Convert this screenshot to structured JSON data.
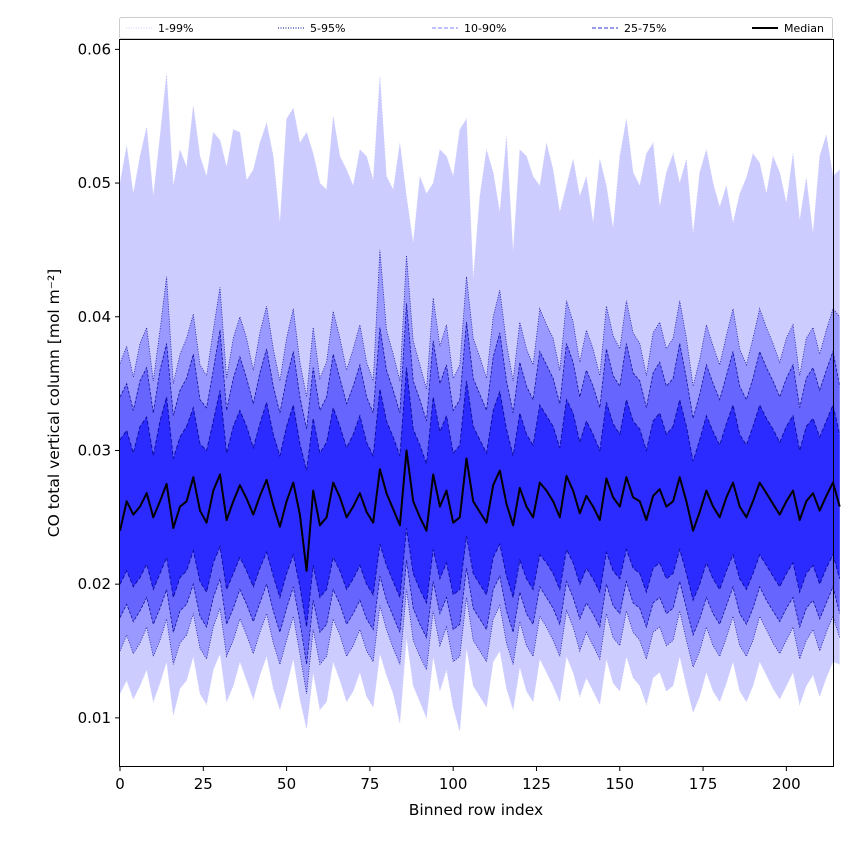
{
  "chart_data": {
    "type": "area",
    "title": "",
    "xlabel": "Binned row index",
    "ylabel": "CO total vertical column [mol m⁻²]",
    "xlim": [
      0,
      214
    ],
    "ylim": [
      0.0064,
      0.0607
    ],
    "x_ticks": [
      0,
      25,
      50,
      75,
      100,
      125,
      150,
      175,
      200
    ],
    "x_tick_labels": [
      "0",
      "25",
      "50",
      "75",
      "100",
      "125",
      "150",
      "175",
      "200"
    ],
    "y_ticks": [
      0.01,
      0.02,
      0.03,
      0.04,
      0.05,
      0.06
    ],
    "y_tick_labels": [
      "0.01",
      "0.02",
      "0.03",
      "0.04",
      "0.05",
      "0.06"
    ],
    "legend": {
      "placement": "top",
      "entries": [
        {
          "label": "1-99%",
          "style": "dotted",
          "color": "#ccccff"
        },
        {
          "label": "5-95%",
          "style": "dotted",
          "color": "#00008b"
        },
        {
          "label": "10-90%",
          "style": "dashed",
          "color": "#8080ff"
        },
        {
          "label": "25-75%",
          "style": "dashed",
          "color": "#3333dd"
        },
        {
          "label": "Median",
          "style": "solid",
          "color": "#000000"
        }
      ]
    },
    "grid": false,
    "band_colors": {
      "1-99%": "#ccccff",
      "5-95%": "#9999ff",
      "10-90%": "#6666ff",
      "25-75%": "#2b2bff",
      "median": "#000000",
      "edge": "#00008b"
    },
    "x_step": 2,
    "x_start": 0,
    "series": [
      {
        "name": "Median",
        "values": [
          0.024,
          0.0262,
          0.0252,
          0.0258,
          0.0268,
          0.025,
          0.0262,
          0.0275,
          0.0242,
          0.0258,
          0.0262,
          0.028,
          0.0255,
          0.0246,
          0.027,
          0.0282,
          0.0248,
          0.0262,
          0.0274,
          0.0264,
          0.0252,
          0.0266,
          0.0278,
          0.0259,
          0.0243,
          0.0262,
          0.0276,
          0.0252,
          0.021,
          0.027,
          0.0244,
          0.025,
          0.0276,
          0.0265,
          0.025,
          0.0258,
          0.0268,
          0.0254,
          0.0246,
          0.0286,
          0.0268,
          0.0256,
          0.0244,
          0.03,
          0.0262,
          0.025,
          0.024,
          0.0282,
          0.0258,
          0.027,
          0.0246,
          0.025,
          0.0294,
          0.0262,
          0.0254,
          0.0246,
          0.0274,
          0.0285,
          0.026,
          0.0244,
          0.0272,
          0.0258,
          0.025,
          0.0276,
          0.027,
          0.0262,
          0.025,
          0.0281,
          0.027,
          0.0253,
          0.0266,
          0.0258,
          0.0248,
          0.0279,
          0.0265,
          0.0258,
          0.028,
          0.0265,
          0.0262,
          0.0248,
          0.0266,
          0.0271,
          0.0258,
          0.0262,
          0.028,
          0.0262,
          0.024,
          0.0254,
          0.027,
          0.0258,
          0.025,
          0.0265,
          0.0276,
          0.0258,
          0.025,
          0.0262,
          0.0276,
          0.0268,
          0.026,
          0.0252,
          0.0262,
          0.027,
          0.0248,
          0.0262,
          0.0268,
          0.0255,
          0.0266,
          0.0276,
          0.0258
        ]
      },
      {
        "name": "25-75%",
        "upper": [
          0.0308,
          0.0315,
          0.0298,
          0.0318,
          0.0325,
          0.0296,
          0.0322,
          0.034,
          0.0294,
          0.031,
          0.0318,
          0.0332,
          0.0305,
          0.03,
          0.0322,
          0.0345,
          0.0298,
          0.0318,
          0.033,
          0.0318,
          0.0302,
          0.032,
          0.0336,
          0.0312,
          0.0296,
          0.0318,
          0.0334,
          0.0305,
          0.0285,
          0.0324,
          0.0298,
          0.0306,
          0.0332,
          0.0318,
          0.0302,
          0.0312,
          0.0326,
          0.0306,
          0.0296,
          0.0346,
          0.0322,
          0.031,
          0.0296,
          0.0362,
          0.0316,
          0.0304,
          0.029,
          0.034,
          0.0314,
          0.0326,
          0.0298,
          0.0304,
          0.0352,
          0.0318,
          0.0308,
          0.0298,
          0.033,
          0.0344,
          0.0316,
          0.0296,
          0.0328,
          0.0312,
          0.0304,
          0.0334,
          0.0326,
          0.0318,
          0.0302,
          0.0338,
          0.0328,
          0.0306,
          0.0322,
          0.0312,
          0.03,
          0.0336,
          0.032,
          0.0312,
          0.0338,
          0.0322,
          0.0316,
          0.03,
          0.0322,
          0.0328,
          0.0312,
          0.0318,
          0.0338,
          0.0318,
          0.0292,
          0.0308,
          0.0326,
          0.0314,
          0.0304,
          0.032,
          0.0334,
          0.0312,
          0.0304,
          0.0318,
          0.0334,
          0.0324,
          0.0316,
          0.0306,
          0.0318,
          0.0326,
          0.03,
          0.0318,
          0.0324,
          0.031,
          0.0322,
          0.0334,
          0.0312
        ],
        "lower": [
          0.02,
          0.021,
          0.0198,
          0.0205,
          0.0215,
          0.0196,
          0.0208,
          0.022,
          0.019,
          0.0205,
          0.021,
          0.0225,
          0.0202,
          0.0194,
          0.0216,
          0.0228,
          0.0196,
          0.0208,
          0.022,
          0.021,
          0.0198,
          0.0212,
          0.0224,
          0.0206,
          0.019,
          0.0208,
          0.0222,
          0.0198,
          0.0168,
          0.0214,
          0.019,
          0.0196,
          0.022,
          0.021,
          0.0196,
          0.0204,
          0.0214,
          0.02,
          0.0192,
          0.023,
          0.0214,
          0.0202,
          0.019,
          0.0242,
          0.0208,
          0.0196,
          0.0186,
          0.0226,
          0.0204,
          0.0216,
          0.0192,
          0.0196,
          0.0236,
          0.0208,
          0.02,
          0.0192,
          0.022,
          0.023,
          0.0206,
          0.019,
          0.0218,
          0.0204,
          0.0196,
          0.0222,
          0.0216,
          0.0208,
          0.0196,
          0.0226,
          0.0216,
          0.02,
          0.0212,
          0.0204,
          0.0194,
          0.0224,
          0.021,
          0.0204,
          0.0226,
          0.0212,
          0.0208,
          0.0194,
          0.0212,
          0.0216,
          0.0204,
          0.0208,
          0.0226,
          0.0208,
          0.0188,
          0.02,
          0.0216,
          0.0204,
          0.0196,
          0.021,
          0.0222,
          0.0204,
          0.0196,
          0.0208,
          0.0222,
          0.0214,
          0.0206,
          0.0198,
          0.0208,
          0.0216,
          0.0194,
          0.0208,
          0.0214,
          0.02,
          0.0212,
          0.0222,
          0.0204
        ]
      },
      {
        "name": "10-90%",
        "upper": [
          0.034,
          0.035,
          0.033,
          0.0352,
          0.0362,
          0.0328,
          0.036,
          0.038,
          0.0326,
          0.0345,
          0.0354,
          0.0372,
          0.0338,
          0.0332,
          0.036,
          0.039,
          0.033,
          0.0354,
          0.037,
          0.0354,
          0.0335,
          0.0358,
          0.0376,
          0.0348,
          0.0328,
          0.0354,
          0.0374,
          0.034,
          0.0316,
          0.0362,
          0.033,
          0.034,
          0.0372,
          0.0354,
          0.0335,
          0.0348,
          0.0364,
          0.034,
          0.0328,
          0.0392,
          0.036,
          0.0345,
          0.0328,
          0.041,
          0.0352,
          0.0338,
          0.0322,
          0.0382,
          0.035,
          0.0364,
          0.033,
          0.0338,
          0.0396,
          0.0354,
          0.0342,
          0.033,
          0.037,
          0.0388,
          0.0352,
          0.0328,
          0.0366,
          0.0348,
          0.0338,
          0.0374,
          0.0364,
          0.0354,
          0.0335,
          0.038,
          0.0366,
          0.034,
          0.036,
          0.0348,
          0.0332,
          0.0376,
          0.0356,
          0.0348,
          0.038,
          0.0358,
          0.0352,
          0.0332,
          0.0358,
          0.0366,
          0.0348,
          0.0354,
          0.038,
          0.0354,
          0.0324,
          0.0342,
          0.0364,
          0.035,
          0.0338,
          0.0356,
          0.0374,
          0.0348,
          0.0338,
          0.0354,
          0.0374,
          0.0362,
          0.0352,
          0.034,
          0.0354,
          0.0364,
          0.0332,
          0.0354,
          0.0362,
          0.0345,
          0.036,
          0.0374,
          0.0348
        ],
        "lower": [
          0.0175,
          0.0185,
          0.0172,
          0.018,
          0.019,
          0.017,
          0.0182,
          0.0196,
          0.0164,
          0.018,
          0.0185,
          0.02,
          0.0176,
          0.0168,
          0.019,
          0.0204,
          0.017,
          0.0182,
          0.0196,
          0.0185,
          0.0172,
          0.0186,
          0.02,
          0.018,
          0.0164,
          0.0182,
          0.0198,
          0.0172,
          0.014,
          0.0188,
          0.0164,
          0.017,
          0.0196,
          0.0185,
          0.017,
          0.0178,
          0.0188,
          0.0174,
          0.0166,
          0.0206,
          0.0188,
          0.0176,
          0.0164,
          0.0218,
          0.0182,
          0.017,
          0.016,
          0.0202,
          0.0178,
          0.019,
          0.0166,
          0.017,
          0.0212,
          0.0182,
          0.0174,
          0.0166,
          0.0196,
          0.0206,
          0.018,
          0.0164,
          0.0194,
          0.0178,
          0.017,
          0.0198,
          0.019,
          0.0182,
          0.017,
          0.0202,
          0.019,
          0.0174,
          0.0186,
          0.0178,
          0.0168,
          0.02,
          0.0184,
          0.0178,
          0.0202,
          0.0186,
          0.0182,
          0.0168,
          0.0186,
          0.019,
          0.0178,
          0.0182,
          0.0202,
          0.0182,
          0.0162,
          0.0174,
          0.019,
          0.0178,
          0.017,
          0.0184,
          0.0198,
          0.0178,
          0.017,
          0.0182,
          0.0198,
          0.0188,
          0.018,
          0.0172,
          0.0182,
          0.019,
          0.0168,
          0.0182,
          0.0188,
          0.0174,
          0.0186,
          0.0198,
          0.0178
        ]
      },
      {
        "name": "5-95%",
        "upper": [
          0.0365,
          0.0378,
          0.0355,
          0.038,
          0.0392,
          0.0352,
          0.039,
          0.043,
          0.035,
          0.0372,
          0.0384,
          0.0402,
          0.0364,
          0.0356,
          0.039,
          0.0422,
          0.0354,
          0.0384,
          0.04,
          0.0384,
          0.036,
          0.0388,
          0.0408,
          0.0376,
          0.0352,
          0.0384,
          0.0406,
          0.0366,
          0.034,
          0.0392,
          0.0354,
          0.0366,
          0.0404,
          0.0384,
          0.036,
          0.0376,
          0.0394,
          0.0366,
          0.0352,
          0.045,
          0.039,
          0.0372,
          0.0352,
          0.0446,
          0.0382,
          0.0364,
          0.0346,
          0.0414,
          0.0378,
          0.0394,
          0.0354,
          0.0364,
          0.043,
          0.0384,
          0.037,
          0.0354,
          0.04,
          0.042,
          0.038,
          0.0352,
          0.0396,
          0.0376,
          0.0364,
          0.0406,
          0.0394,
          0.0384,
          0.036,
          0.0412,
          0.0396,
          0.0366,
          0.039,
          0.0376,
          0.0356,
          0.0408,
          0.0386,
          0.0376,
          0.0412,
          0.0388,
          0.038,
          0.0356,
          0.0388,
          0.0396,
          0.0376,
          0.0384,
          0.0412,
          0.0384,
          0.0348,
          0.0368,
          0.0394,
          0.0378,
          0.0364,
          0.0386,
          0.0406,
          0.0376,
          0.0364,
          0.0384,
          0.0406,
          0.0392,
          0.038,
          0.0366,
          0.0384,
          0.0394,
          0.0356,
          0.0384,
          0.0392,
          0.0372,
          0.039,
          0.0406,
          0.04
        ],
        "lower": [
          0.015,
          0.0162,
          0.0148,
          0.0156,
          0.0168,
          0.0146,
          0.0158,
          0.0174,
          0.014,
          0.0156,
          0.0162,
          0.0178,
          0.0152,
          0.0144,
          0.0168,
          0.0182,
          0.0146,
          0.0158,
          0.0174,
          0.0162,
          0.0148,
          0.0164,
          0.0178,
          0.0156,
          0.014,
          0.0158,
          0.0176,
          0.0148,
          0.0118,
          0.0166,
          0.014,
          0.0146,
          0.0174,
          0.0162,
          0.0146,
          0.0154,
          0.0166,
          0.015,
          0.0142,
          0.0184,
          0.0166,
          0.0152,
          0.014,
          0.0196,
          0.0158,
          0.0146,
          0.0136,
          0.018,
          0.0154,
          0.0168,
          0.0142,
          0.0146,
          0.019,
          0.0158,
          0.015,
          0.0142,
          0.0174,
          0.0184,
          0.0156,
          0.014,
          0.0172,
          0.0154,
          0.0146,
          0.0176,
          0.0168,
          0.0158,
          0.0146,
          0.018,
          0.0168,
          0.015,
          0.0164,
          0.0154,
          0.0144,
          0.0178,
          0.016,
          0.0154,
          0.018,
          0.0164,
          0.0158,
          0.0144,
          0.0164,
          0.0168,
          0.0154,
          0.0158,
          0.018,
          0.0158,
          0.0138,
          0.015,
          0.0168,
          0.0154,
          0.0146,
          0.016,
          0.0176,
          0.0154,
          0.0146,
          0.0158,
          0.0176,
          0.0166,
          0.0156,
          0.0148,
          0.0158,
          0.0168,
          0.0144,
          0.0158,
          0.0166,
          0.015,
          0.0164,
          0.0176,
          0.016
        ]
      },
      {
        "name": "1-99%",
        "upper": [
          0.05,
          0.0528,
          0.0492,
          0.052,
          0.0542,
          0.049,
          0.0535,
          0.0582,
          0.0498,
          0.0525,
          0.0512,
          0.0558,
          0.052,
          0.0505,
          0.0538,
          0.0532,
          0.0512,
          0.054,
          0.0538,
          0.0502,
          0.051,
          0.053,
          0.0545,
          0.052,
          0.047,
          0.0548,
          0.0556,
          0.053,
          0.0538,
          0.0522,
          0.05,
          0.0495,
          0.055,
          0.052,
          0.051,
          0.0498,
          0.0525,
          0.052,
          0.0502,
          0.058,
          0.0505,
          0.0495,
          0.053,
          0.049,
          0.0455,
          0.0505,
          0.0492,
          0.05,
          0.0525,
          0.052,
          0.0505,
          0.054,
          0.0548,
          0.0428,
          0.049,
          0.0525,
          0.0508,
          0.0478,
          0.0535,
          0.0448,
          0.0525,
          0.052,
          0.0505,
          0.0498,
          0.053,
          0.051,
          0.0478,
          0.0498,
          0.0518,
          0.049,
          0.0505,
          0.047,
          0.0518,
          0.0498,
          0.0466,
          0.052,
          0.0548,
          0.0508,
          0.0498,
          0.0522,
          0.053,
          0.0482,
          0.0508,
          0.0522,
          0.05,
          0.0518,
          0.0462,
          0.0508,
          0.0525,
          0.05,
          0.0482,
          0.0498,
          0.047,
          0.0492,
          0.0504,
          0.0522,
          0.0515,
          0.0492,
          0.052,
          0.0508,
          0.0485,
          0.0522,
          0.0472,
          0.0504,
          0.0462,
          0.052,
          0.0536,
          0.0505,
          0.051
        ],
        "lower": [
          0.0118,
          0.0128,
          0.0114,
          0.0124,
          0.0136,
          0.0112,
          0.0126,
          0.0142,
          0.0102,
          0.0122,
          0.0128,
          0.0146,
          0.0118,
          0.011,
          0.0136,
          0.0148,
          0.0112,
          0.0124,
          0.0142,
          0.0128,
          0.0114,
          0.0132,
          0.0146,
          0.0122,
          0.0106,
          0.0124,
          0.0144,
          0.0114,
          0.0092,
          0.0134,
          0.0106,
          0.0112,
          0.0142,
          0.0128,
          0.0112,
          0.012,
          0.0134,
          0.0116,
          0.0108,
          0.0148,
          0.0132,
          0.0118,
          0.0096,
          0.016,
          0.0124,
          0.0112,
          0.01,
          0.0146,
          0.012,
          0.0136,
          0.0108,
          0.009,
          0.0152,
          0.0124,
          0.0116,
          0.0108,
          0.0142,
          0.015,
          0.0122,
          0.0106,
          0.0138,
          0.012,
          0.0112,
          0.0144,
          0.0134,
          0.0124,
          0.0112,
          0.0146,
          0.0134,
          0.0116,
          0.013,
          0.012,
          0.011,
          0.0144,
          0.0126,
          0.012,
          0.0146,
          0.013,
          0.0124,
          0.011,
          0.013,
          0.0134,
          0.012,
          0.0124,
          0.0146,
          0.0124,
          0.0104,
          0.0116,
          0.0134,
          0.012,
          0.0112,
          0.0126,
          0.0142,
          0.012,
          0.0112,
          0.0124,
          0.0142,
          0.0132,
          0.0122,
          0.0114,
          0.0124,
          0.0134,
          0.011,
          0.0124,
          0.0132,
          0.0116,
          0.013,
          0.0142,
          0.014
        ]
      }
    ]
  }
}
